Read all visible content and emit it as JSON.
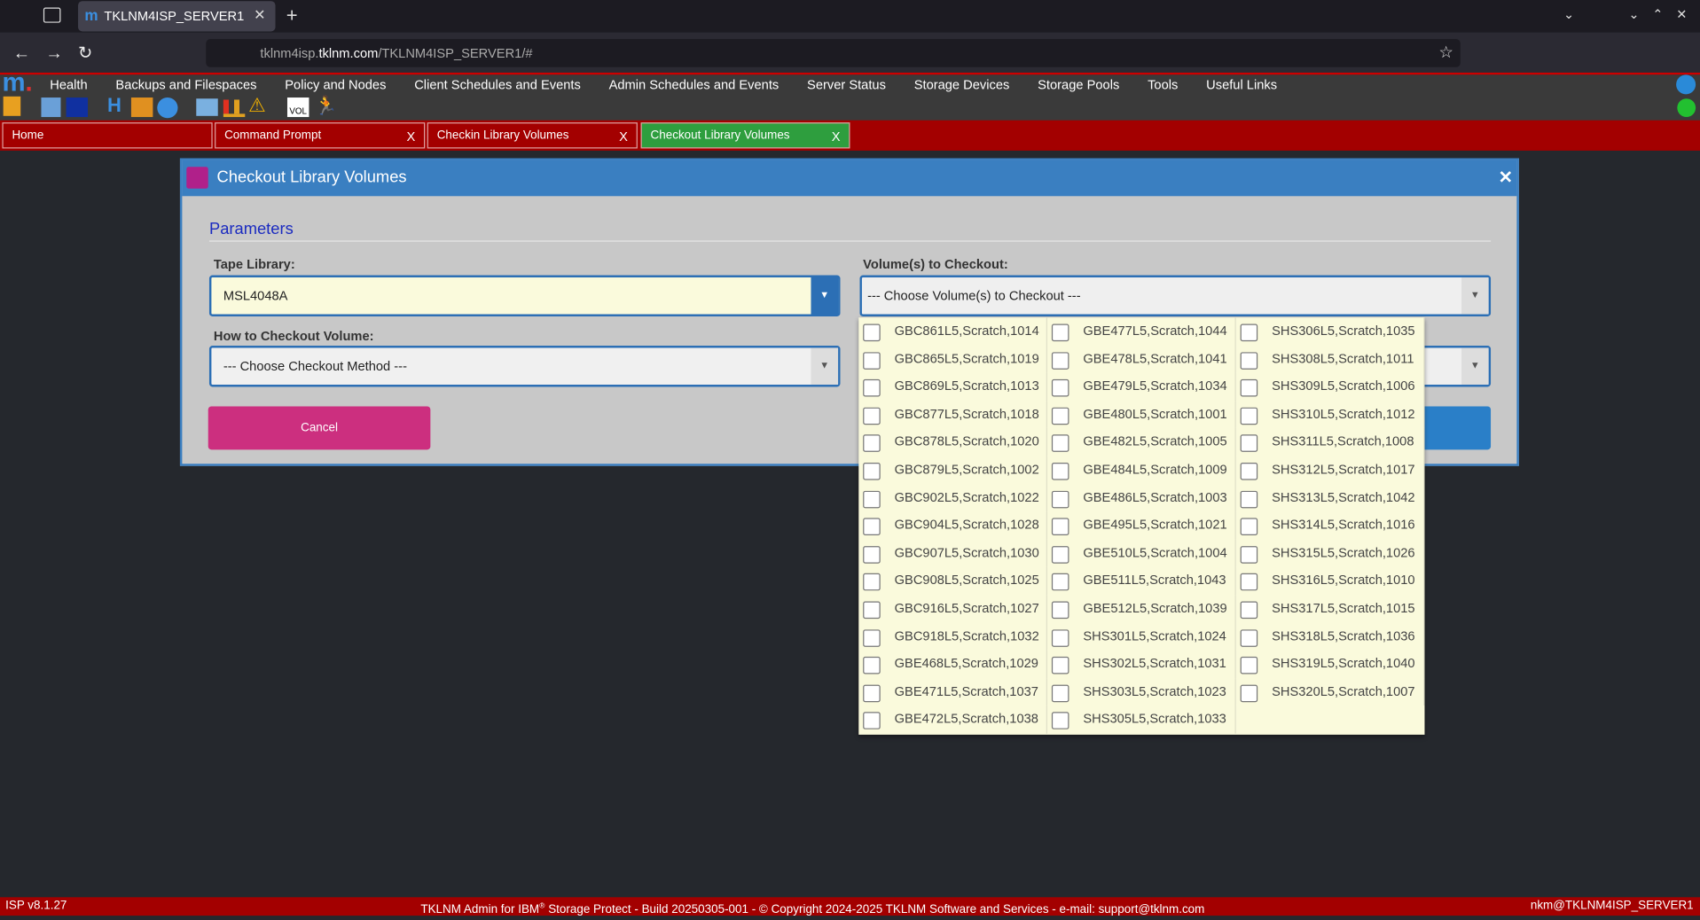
{
  "browser": {
    "tab_title": "TKLNM4ISP_SERVER1",
    "url_prefix": "tklnm4isp.",
    "url_host": "tklnm.com",
    "url_path": "/TKLNM4ISP_SERVER1/#"
  },
  "menu": [
    "Health",
    "Backups and Filespaces",
    "Policy and Nodes",
    "Client Schedules and Events",
    "Admin Schedules and Events",
    "Server Status",
    "Storage Devices",
    "Storage Pools",
    "Tools",
    "Useful Links"
  ],
  "toolbar": {
    "vol_icon": "VOL"
  },
  "app_tabs": [
    {
      "label": "Home"
    },
    {
      "label": "Command Prompt",
      "close": "X"
    },
    {
      "label": "Checkin Library Volumes",
      "close": "X"
    },
    {
      "label": "Checkout Library Volumes",
      "close": "X"
    }
  ],
  "dialog": {
    "title": "Checkout Library Volumes",
    "close": "✕",
    "section": "Parameters",
    "tape_library_label": "Tape Library:",
    "tape_library_value": "MSL4048A",
    "method_label": "How to Checkout Volume:",
    "method_value": "--- Choose Checkout Method ---",
    "cancel": "Cancel",
    "volumes_label": "Volume(s) to Checkout:",
    "volumes_value": "--- Choose Volume(s) to Checkout ---",
    "volume_options": [
      "GBC861L5,Scratch,1014",
      "GBC865L5,Scratch,1019",
      "GBC869L5,Scratch,1013",
      "GBC877L5,Scratch,1018",
      "GBC878L5,Scratch,1020",
      "GBC879L5,Scratch,1002",
      "GBC902L5,Scratch,1022",
      "GBC904L5,Scratch,1028",
      "GBC907L5,Scratch,1030",
      "GBC908L5,Scratch,1025",
      "GBC916L5,Scratch,1027",
      "GBC918L5,Scratch,1032",
      "GBE468L5,Scratch,1029",
      "GBE471L5,Scratch,1037",
      "GBE472L5,Scratch,1038",
      "GBE477L5,Scratch,1044",
      "GBE478L5,Scratch,1041",
      "GBE479L5,Scratch,1034",
      "GBE480L5,Scratch,1001",
      "GBE482L5,Scratch,1005",
      "GBE484L5,Scratch,1009",
      "GBE486L5,Scratch,1003",
      "GBE495L5,Scratch,1021",
      "GBE510L5,Scratch,1004",
      "GBE511L5,Scratch,1043",
      "GBE512L5,Scratch,1039",
      "SHS301L5,Scratch,1024",
      "SHS302L5,Scratch,1031",
      "SHS303L5,Scratch,1023",
      "SHS305L5,Scratch,1033",
      "SHS306L5,Scratch,1035",
      "SHS308L5,Scratch,1011",
      "SHS309L5,Scratch,1006",
      "SHS310L5,Scratch,1012",
      "SHS311L5,Scratch,1008",
      "SHS312L5,Scratch,1017",
      "SHS313L5,Scratch,1042",
      "SHS314L5,Scratch,1016",
      "SHS315L5,Scratch,1026",
      "SHS316L5,Scratch,1010",
      "SHS317L5,Scratch,1015",
      "SHS318L5,Scratch,1036",
      "SHS319L5,Scratch,1040",
      "SHS320L5,Scratch,1007"
    ]
  },
  "footer": {
    "version": "ISP v8.1.27",
    "center_before": "TKLNM Admin for IBM",
    "center_sup": "®",
    "center_after": " Storage Protect - Build 20250305-001 - © Copyright 2024-2025 TKLNM Software and Services - e-mail: support@tklnm.com",
    "user": "nkm@TKLNM4ISP_SERVER1"
  }
}
